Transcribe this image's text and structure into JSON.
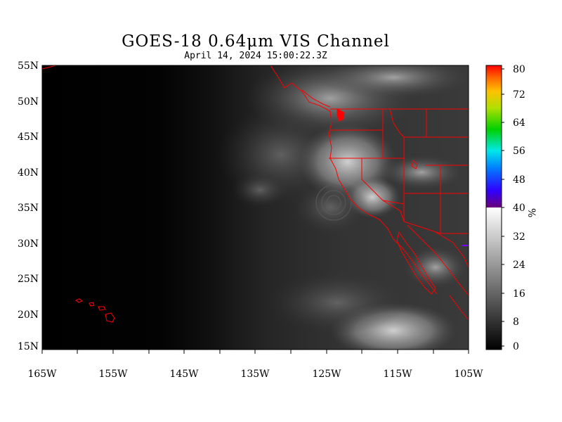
{
  "title": "GOES-18  0.64μm VIS Channel",
  "subtitle": "April 14,  2024 15:00:22.3Z",
  "axes": {
    "lat_labels": [
      "55N",
      "50N",
      "45N",
      "40N",
      "35N",
      "30N",
      "25N",
      "20N",
      "15N"
    ],
    "lon_labels": [
      "165W",
      "155W",
      "145W",
      "135W",
      "125W",
      "115W",
      "105W"
    ]
  },
  "colorbar": {
    "ticks": [
      "80",
      "72",
      "64",
      "56",
      "48",
      "40",
      "32",
      "24",
      "16",
      "8",
      "0"
    ],
    "unit": "%",
    "range": [
      0,
      80
    ]
  },
  "colors": {
    "coastline": "#ff0000",
    "background": "#000000"
  }
}
